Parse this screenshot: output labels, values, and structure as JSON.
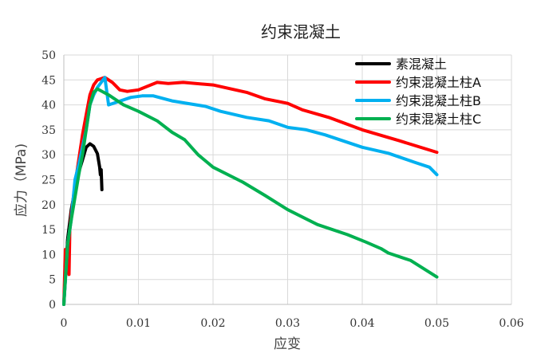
{
  "chart_data": {
    "type": "line",
    "title": "约束混凝土",
    "xlabel": "应变",
    "ylabel": "应力（MPa)",
    "xlim": [
      0,
      0.06
    ],
    "ylim": [
      0,
      50
    ],
    "x_ticks": [
      "0",
      "0.01",
      "0.02",
      "0.03",
      "0.04",
      "0.05",
      "0.06"
    ],
    "y_ticks": [
      "0",
      "5",
      "10",
      "15",
      "20",
      "25",
      "30",
      "35",
      "40",
      "45",
      "50"
    ],
    "grid": true,
    "legend_position": "top-right",
    "series": [
      {
        "name": "素混凝土",
        "color": "#000000",
        "points": [
          [
            0,
            0
          ],
          [
            0.0005,
            13
          ],
          [
            0.001,
            19
          ],
          [
            0.0015,
            23
          ],
          [
            0.002,
            26.5
          ],
          [
            0.0025,
            29
          ],
          [
            0.003,
            31.5
          ],
          [
            0.0035,
            32.2
          ],
          [
            0.004,
            31.7
          ],
          [
            0.0045,
            30.2
          ],
          [
            0.0048,
            27.5
          ],
          [
            0.0049,
            26
          ],
          [
            0.005,
            27
          ],
          [
            0.0051,
            23
          ]
        ]
      },
      {
        "name": "约束混凝土柱A",
        "color": "#ff0000",
        "points": [
          [
            0,
            0
          ],
          [
            0.0002,
            11
          ],
          [
            0.0007,
            6
          ],
          [
            0.0008,
            15
          ],
          [
            0.001,
            18
          ],
          [
            0.0015,
            24
          ],
          [
            0.002,
            29
          ],
          [
            0.0025,
            34
          ],
          [
            0.003,
            38
          ],
          [
            0.0035,
            42
          ],
          [
            0.004,
            44
          ],
          [
            0.0045,
            45
          ],
          [
            0.0055,
            45.5
          ],
          [
            0.0065,
            44.5
          ],
          [
            0.0075,
            43
          ],
          [
            0.0085,
            42.7
          ],
          [
            0.01,
            43
          ],
          [
            0.0125,
            44.5
          ],
          [
            0.014,
            44.3
          ],
          [
            0.016,
            44.5
          ],
          [
            0.02,
            44
          ],
          [
            0.0245,
            42.5
          ],
          [
            0.027,
            41.2
          ],
          [
            0.03,
            40.3
          ],
          [
            0.032,
            39
          ],
          [
            0.0355,
            37.5
          ],
          [
            0.04,
            35
          ],
          [
            0.045,
            32.8
          ],
          [
            0.05,
            30.5
          ]
        ]
      },
      {
        "name": "约束混凝土柱B",
        "color": "#00b0f0",
        "points": [
          [
            0,
            0
          ],
          [
            0.0005,
            12
          ],
          [
            0.001,
            17
          ],
          [
            0.0015,
            25
          ],
          [
            0.002,
            28
          ],
          [
            0.003,
            35
          ],
          [
            0.0035,
            40
          ],
          [
            0.004,
            42
          ],
          [
            0.0045,
            43.5
          ],
          [
            0.005,
            44.5
          ],
          [
            0.0055,
            45.5
          ],
          [
            0.006,
            40
          ],
          [
            0.007,
            40.5
          ],
          [
            0.009,
            41.5
          ],
          [
            0.0105,
            41.8
          ],
          [
            0.012,
            41.8
          ],
          [
            0.0145,
            40.8
          ],
          [
            0.019,
            39.7
          ],
          [
            0.021,
            38.7
          ],
          [
            0.0245,
            37.5
          ],
          [
            0.0275,
            36.8
          ],
          [
            0.03,
            35.5
          ],
          [
            0.0325,
            35
          ],
          [
            0.035,
            34
          ],
          [
            0.04,
            31.5
          ],
          [
            0.0435,
            30.3
          ],
          [
            0.047,
            28.5
          ],
          [
            0.049,
            27.5
          ],
          [
            0.05,
            26
          ]
        ]
      },
      {
        "name": "约束混凝土柱C",
        "color": "#00b050",
        "points": [
          [
            0,
            0
          ],
          [
            0.0005,
            12
          ],
          [
            0.001,
            17
          ],
          [
            0.002,
            26
          ],
          [
            0.0025,
            30
          ],
          [
            0.003,
            35
          ],
          [
            0.0035,
            40
          ],
          [
            0.004,
            42.5
          ],
          [
            0.0045,
            43.2
          ],
          [
            0.006,
            42
          ],
          [
            0.008,
            40
          ],
          [
            0.01,
            38.7
          ],
          [
            0.0125,
            36.8
          ],
          [
            0.0145,
            34.5
          ],
          [
            0.0162,
            33
          ],
          [
            0.018,
            30
          ],
          [
            0.02,
            27.5
          ],
          [
            0.024,
            24.5
          ],
          [
            0.027,
            21.8
          ],
          [
            0.03,
            19
          ],
          [
            0.034,
            16
          ],
          [
            0.038,
            14
          ],
          [
            0.0405,
            12.5
          ],
          [
            0.0425,
            11.2
          ],
          [
            0.0435,
            10.3
          ],
          [
            0.0465,
            8.8
          ],
          [
            0.05,
            5.5
          ]
        ]
      }
    ]
  }
}
